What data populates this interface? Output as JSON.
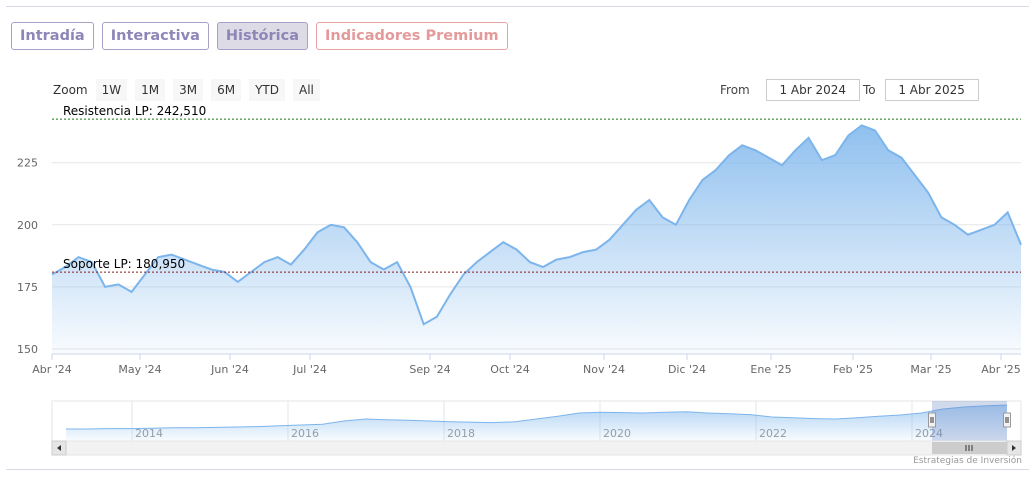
{
  "tabs": [
    {
      "label": "Intradía",
      "active": false
    },
    {
      "label": "Interactiva",
      "active": false
    },
    {
      "label": "Histórica",
      "active": true
    },
    {
      "label": "Indicadores Premium",
      "active": false
    }
  ],
  "zoom": {
    "label": "Zoom",
    "buttons": [
      "1W",
      "1M",
      "3M",
      "6M",
      "YTD",
      "All"
    ]
  },
  "range": {
    "from_label": "From",
    "from_value": "1 Abr 2024",
    "to_label": "To",
    "to_value": "1 Abr 2025"
  },
  "chart_data": {
    "type": "area",
    "x_ticks": [
      "Abr '24",
      "May '24",
      "Jun '24",
      "Jul '24",
      "Sep '24",
      "Oct '24",
      "Nov '24",
      "Dic '24",
      "Ene '25",
      "Feb '25",
      "Mar '25",
      "Abr '25"
    ],
    "y_ticks": [
      150,
      175,
      200,
      225
    ],
    "ylim": [
      148,
      245
    ],
    "grid": true,
    "x_days": [
      0,
      5,
      10,
      15,
      20,
      25,
      30,
      35,
      40,
      45,
      50,
      55,
      60,
      65,
      70,
      75,
      80,
      85,
      90,
      95,
      100,
      105,
      110,
      115,
      120,
      125,
      130,
      135,
      140,
      145,
      150,
      155,
      160,
      165,
      170,
      175,
      180,
      185,
      190,
      195,
      200,
      205,
      210,
      215,
      220,
      225,
      230,
      235,
      240,
      245,
      250,
      255,
      260,
      265,
      270,
      275,
      280,
      285,
      290,
      295,
      300,
      305,
      310,
      315,
      320,
      325,
      330,
      335,
      340,
      345,
      350,
      355,
      360,
      365
    ],
    "values": [
      180,
      183,
      187,
      185,
      175,
      176,
      173,
      180,
      187,
      188,
      186,
      184,
      182,
      181,
      177,
      181,
      185,
      187,
      184,
      190,
      197,
      200,
      199,
      193,
      185,
      182,
      185,
      175,
      160,
      163,
      172,
      180,
      185,
      189,
      193,
      190,
      185,
      183,
      186,
      187,
      189,
      190,
      194,
      200,
      206,
      210,
      203,
      200,
      210,
      218,
      222,
      228,
      232,
      230,
      227,
      224,
      230,
      235,
      226,
      228,
      236,
      240,
      238,
      230,
      227,
      220,
      213,
      203,
      200,
      196,
      198,
      200,
      205,
      192
    ],
    "annotations": [
      {
        "label": "Resistencia LP: 242,510",
        "value": 242.51
      },
      {
        "label": "Soporte LP: 180,950",
        "value": 180.95
      }
    ],
    "navigator_years": [
      "2014",
      "2016",
      "2018",
      "2020",
      "2022",
      "2024"
    ],
    "navigator_values": [
      30,
      30,
      31,
      31,
      32,
      33,
      33,
      34,
      35,
      36,
      38,
      40,
      42,
      50,
      55,
      53,
      52,
      50,
      48,
      47,
      46,
      48,
      55,
      62,
      70,
      72,
      71,
      70,
      72,
      73,
      70,
      68,
      66,
      60,
      58,
      56,
      55,
      58,
      62,
      65,
      70,
      80,
      85,
      88,
      90
    ]
  },
  "credits": "Estrategias de Inversión",
  "colors": {
    "line": "#7cb5ec",
    "resistance": "#1a7a1a",
    "support": "#8b1a1a",
    "tab_border": "#a7a1c7",
    "tab_text": "#8f86b8",
    "premium": "#e49a9a"
  }
}
